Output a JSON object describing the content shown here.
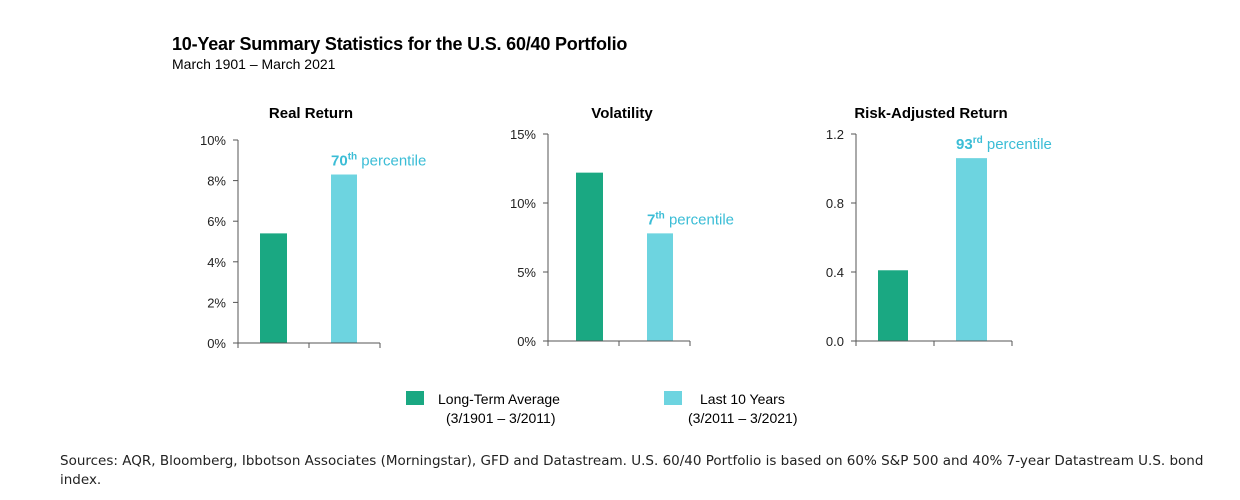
{
  "title": "10-Year Summary Statistics for the U.S. 60/40 Portfolio",
  "subtitle": "March 1901 – March 2021",
  "colors": {
    "long_term": "#1aa882",
    "last_10": "#6dd4e0",
    "annotation": "#3bbdd6",
    "axis": "#555555"
  },
  "legend": {
    "items": [
      {
        "label": "Long-Term Average",
        "sub": "(3/1901 – 3/2011)",
        "color": "#1aa882"
      },
      {
        "label": "Last 10 Years",
        "sub": "(3/2011 – 3/2021)",
        "color": "#6dd4e0"
      }
    ]
  },
  "chart_data": [
    {
      "type": "bar",
      "title": "Real Return",
      "categories": [
        "Long-Term Average",
        "Last 10 Years"
      ],
      "values": [
        5.4,
        8.3
      ],
      "ylim": [
        0,
        10
      ],
      "yticks": [
        0,
        2,
        4,
        6,
        8,
        10
      ],
      "ytick_labels": [
        "0%",
        "2%",
        "4%",
        "6%",
        "8%",
        "10%"
      ],
      "annotation": {
        "number": "70",
        "suffix": "th",
        "text": " percentile"
      }
    },
    {
      "type": "bar",
      "title": "Volatility",
      "categories": [
        "Long-Term Average",
        "Last 10 Years"
      ],
      "values": [
        12.2,
        7.8
      ],
      "ylim": [
        0,
        15
      ],
      "yticks": [
        0,
        5,
        10,
        15
      ],
      "ytick_labels": [
        "0%",
        "5%",
        "10%",
        "15%"
      ],
      "annotation": {
        "number": "7",
        "suffix": "th",
        "text": " percentile"
      }
    },
    {
      "type": "bar",
      "title": "Risk-Adjusted Return",
      "categories": [
        "Long-Term Average",
        "Last 10 Years"
      ],
      "values": [
        0.41,
        1.06
      ],
      "ylim": [
        0,
        1.2
      ],
      "yticks": [
        0,
        0.4,
        0.8,
        1.2
      ],
      "ytick_labels": [
        "0.0",
        "0.4",
        "0.8",
        "1.2"
      ],
      "annotation": {
        "number": "93",
        "suffix": "rd",
        "text": " percentile"
      }
    }
  ],
  "source": "Sources: AQR, Bloomberg, Ibbotson Associates (Morningstar), GFD and Datastream. U.S. 60/40 Portfolio is based on 60% S&P 500 and 40% 7-year Datastream U.S. bond index."
}
